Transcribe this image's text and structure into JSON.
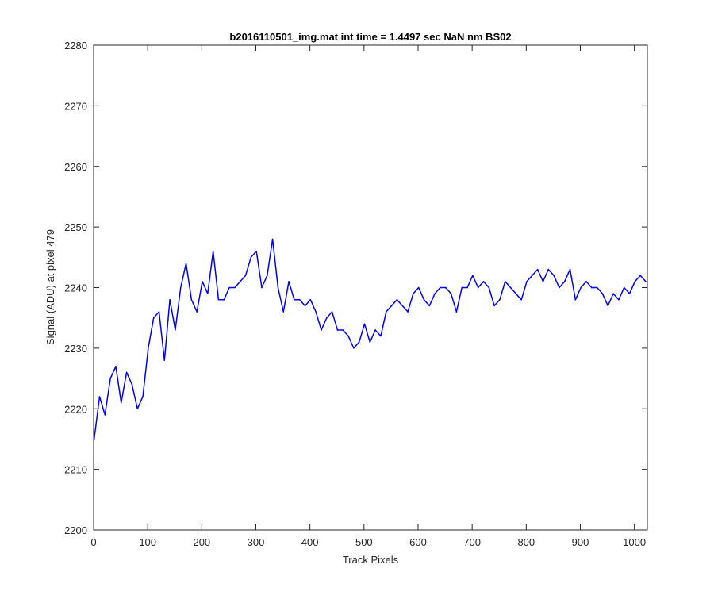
{
  "chart_data": {
    "type": "line",
    "title": "b2016110501_img.mat int time = 1.4497 sec  NaN nm BS02",
    "xlabel": "Track Pixels",
    "ylabel": "Signal (ADU) at pixel 479",
    "xlim": [
      0,
      1024
    ],
    "ylim": [
      2200,
      2280
    ],
    "grid": false,
    "x_ticks": [
      0,
      100,
      200,
      300,
      400,
      500,
      600,
      700,
      800,
      900,
      1000
    ],
    "y_ticks": [
      2200,
      2210,
      2220,
      2230,
      2240,
      2250,
      2260,
      2270,
      2280
    ],
    "series": [
      {
        "color": "#0000ff",
        "x_start": 1,
        "x_step": 10,
        "values": [
          2215,
          2222,
          2219,
          2225,
          2227,
          2221,
          2226,
          2224,
          2220,
          2222,
          2230,
          2235,
          2236,
          2228,
          2238,
          2233,
          2240,
          2244,
          2238,
          2236,
          2241,
          2239,
          2246,
          2238,
          2238,
          2240,
          2240,
          2241,
          2242,
          2245,
          2246,
          2240,
          2242,
          2248,
          2240,
          2236,
          2241,
          2238,
          2238,
          2237,
          2238,
          2236,
          2233,
          2235,
          2236,
          2233,
          2233,
          2232,
          2230,
          2231,
          2234,
          2231,
          2233,
          2232,
          2236,
          2237,
          2238,
          2237,
          2236,
          2239,
          2240,
          2238,
          2237,
          2239,
          2240,
          2240,
          2239,
          2236,
          2240,
          2240,
          2242,
          2240,
          2241,
          2240,
          2237,
          2238,
          2241,
          2240,
          2239,
          2238,
          2241,
          2242,
          2243,
          2241,
          2243,
          2242,
          2240,
          2241,
          2243,
          2238,
          2240,
          2241,
          2240,
          2240,
          2239,
          2237,
          2239,
          2238,
          2240,
          2239,
          2241,
          2242,
          2241
        ]
      }
    ]
  }
}
